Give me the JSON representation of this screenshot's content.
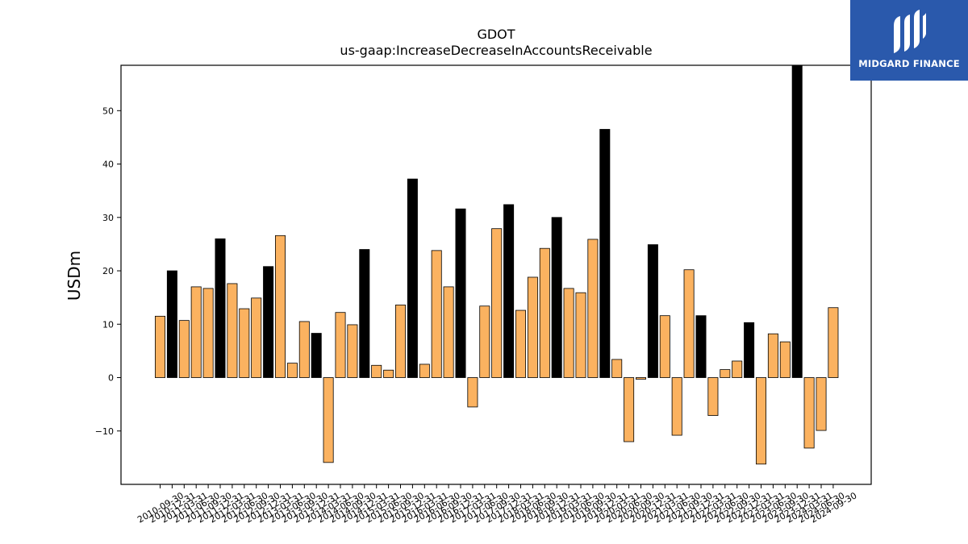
{
  "brand": {
    "name": "MIDGARD FINANCE",
    "bg_color": "#2a59ac"
  },
  "colors": {
    "quarterly_bar": "#fbb260",
    "annual_bar": "#000000"
  },
  "chart_data": {
    "type": "bar",
    "title": "GDOT",
    "subtitle": "us-gaap:IncreaseDecreaseInAccountsReceivable",
    "xlabel": "",
    "ylabel": "USDm",
    "ylim": [
      -20,
      58.5
    ],
    "yticks": [
      -10,
      0,
      10,
      20,
      30,
      40,
      50
    ],
    "grid": false,
    "legend": "none",
    "categories": [
      "2010-09-30",
      "2010-12-31",
      "2011-03-31",
      "2011-06-30",
      "2011-09-30",
      "2011-12-31",
      "2012-03-31",
      "2012-06-30",
      "2012-09-30",
      "2012-12-31",
      "2013-03-31",
      "2013-06-30",
      "2013-09-30",
      "2013-12-31",
      "2014-03-31",
      "2014-06-30",
      "2014-09-30",
      "2014-12-31",
      "2015-03-31",
      "2015-06-30",
      "2015-09-30",
      "2015-12-31",
      "2016-03-31",
      "2016-06-30",
      "2016-09-30",
      "2016-12-31",
      "2017-03-31",
      "2017-06-30",
      "2017-09-30",
      "2017-12-31",
      "2018-03-31",
      "2018-06-30",
      "2018-09-30",
      "2018-12-31",
      "2019-03-31",
      "2019-06-30",
      "2019-09-30",
      "2019-12-31",
      "2020-03-31",
      "2020-06-30",
      "2020-09-30",
      "2020-12-31",
      "2021-03-31",
      "2021-06-30",
      "2021-09-30",
      "2021-12-31",
      "2022-03-31",
      "2022-06-30",
      "2022-09-30",
      "2022-12-31",
      "2023-03-31",
      "2023-06-30",
      "2023-09-30",
      "2023-12-31",
      "2024-03-31",
      "2024-06-30",
      "2024-09-30"
    ],
    "values": [
      11.5,
      20.0,
      10.7,
      17.0,
      16.7,
      26.0,
      17.6,
      12.9,
      14.9,
      20.8,
      26.6,
      2.7,
      10.5,
      8.3,
      -15.9,
      12.2,
      9.9,
      24.0,
      2.3,
      1.4,
      13.6,
      37.2,
      2.5,
      23.8,
      17.0,
      31.6,
      -5.5,
      13.4,
      27.9,
      32.4,
      12.6,
      18.8,
      24.2,
      30.0,
      16.7,
      15.9,
      25.9,
      46.5,
      3.4,
      -12.0,
      -0.3,
      24.9,
      11.6,
      -10.8,
      20.2,
      11.6,
      -7.1,
      1.5,
      3.1,
      10.3,
      -16.2,
      8.2,
      6.7,
      58.5,
      -13.2,
      -9.9,
      13.1
    ],
    "annual": [
      false,
      true,
      false,
      false,
      false,
      true,
      false,
      false,
      false,
      true,
      false,
      false,
      false,
      true,
      false,
      false,
      false,
      true,
      false,
      false,
      false,
      true,
      false,
      false,
      false,
      true,
      false,
      false,
      false,
      true,
      false,
      false,
      false,
      true,
      false,
      false,
      false,
      true,
      false,
      false,
      false,
      true,
      false,
      false,
      false,
      true,
      false,
      false,
      false,
      true,
      false,
      false,
      false,
      true,
      false,
      false,
      false
    ]
  }
}
